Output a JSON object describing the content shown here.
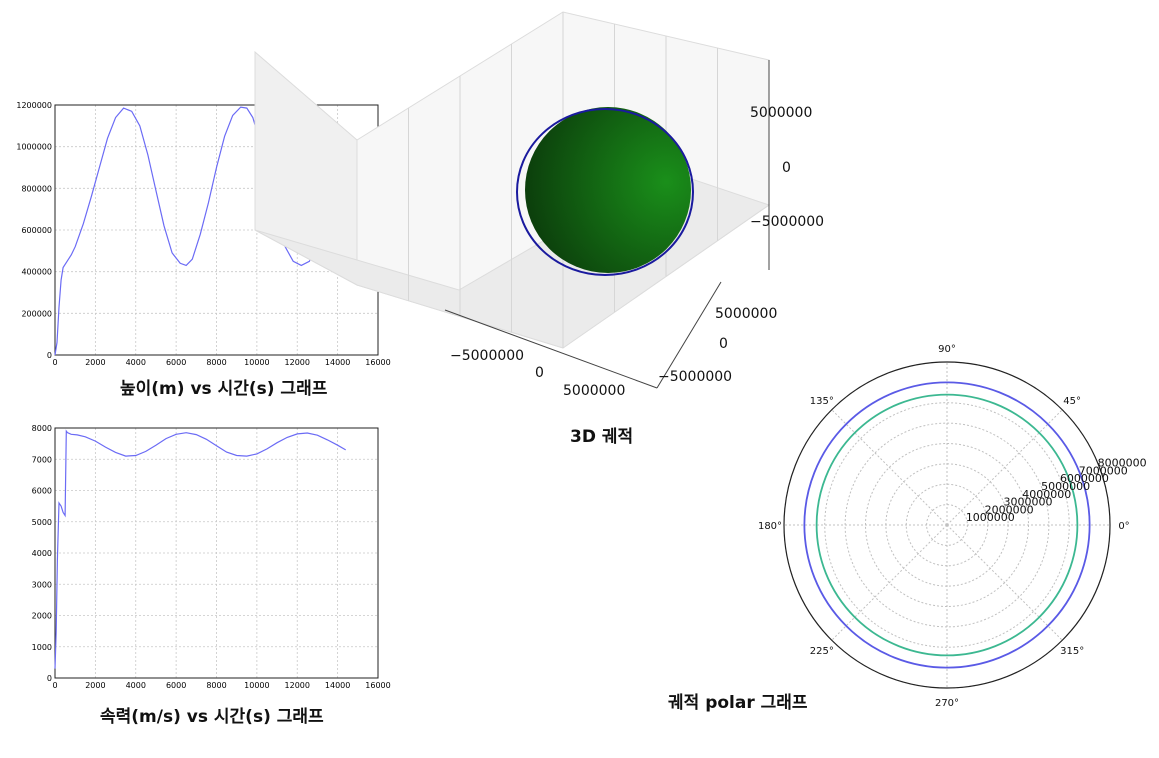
{
  "chart_data": [
    {
      "type": "line",
      "title": "높이(m) vs 시간(s) 그래프",
      "xlim": [
        0,
        16000
      ],
      "ylim": [
        0,
        1200000
      ],
      "x_ticks": [
        "0",
        "2000",
        "4000",
        "6000",
        "8000",
        "10000",
        "12000",
        "14000",
        "16000"
      ],
      "y_ticks": [
        "0",
        "200000",
        "400000",
        "600000",
        "800000",
        "1000000",
        "1200000"
      ],
      "grid": true,
      "color": "#6b6bf5",
      "series": [
        {
          "x": [
            0,
            100,
            200,
            300,
            400,
            600,
            800,
            1000,
            1400,
            1800,
            2200,
            2600,
            3000,
            3400,
            3800,
            4200,
            4600,
            5000,
            5400,
            5800,
            6200,
            6500,
            6800,
            7200,
            7600,
            8000,
            8400,
            8800,
            9200,
            9500,
            9800,
            10200,
            10600,
            11000,
            11400,
            11800,
            12200,
            12600,
            12900,
            13200,
            13600,
            14000,
            14400
          ],
          "y": [
            0,
            60000,
            230000,
            360000,
            420000,
            450000,
            480000,
            520000,
            630000,
            760000,
            900000,
            1040000,
            1140000,
            1185000,
            1170000,
            1100000,
            960000,
            790000,
            620000,
            490000,
            440000,
            430000,
            460000,
            580000,
            730000,
            900000,
            1050000,
            1150000,
            1190000,
            1185000,
            1140000,
            1010000,
            840000,
            660000,
            520000,
            450000,
            430000,
            450000,
            520000,
            620000,
            750000,
            880000,
            950000
          ]
        }
      ]
    },
    {
      "type": "line",
      "title": "속력(m/s) vs 시간(s) 그래프",
      "xlim": [
        0,
        16000
      ],
      "ylim": [
        0,
        8000
      ],
      "x_ticks": [
        "0",
        "2000",
        "4000",
        "6000",
        "8000",
        "10000",
        "12000",
        "14000",
        "16000"
      ],
      "y_ticks": [
        "0",
        "1000",
        "2000",
        "3000",
        "4000",
        "5000",
        "6000",
        "7000",
        "8000"
      ],
      "grid": true,
      "color": "#6b6bf5",
      "series": [
        {
          "x": [
            0,
            60,
            120,
            200,
            300,
            400,
            500,
            560,
            620,
            800,
            1100,
            1500,
            2000,
            2500,
            3000,
            3500,
            4000,
            4500,
            5000,
            5500,
            6000,
            6500,
            7000,
            7500,
            8000,
            8500,
            9000,
            9500,
            10000,
            10500,
            11000,
            11500,
            12000,
            12500,
            13000,
            13500,
            14000,
            14400
          ],
          "y": [
            300,
            1500,
            3800,
            5600,
            5500,
            5300,
            5200,
            7900,
            7850,
            7800,
            7780,
            7720,
            7580,
            7390,
            7220,
            7100,
            7120,
            7250,
            7450,
            7660,
            7800,
            7850,
            7790,
            7640,
            7430,
            7230,
            7120,
            7100,
            7170,
            7330,
            7530,
            7700,
            7810,
            7840,
            7770,
            7620,
            7450,
            7300
          ]
        }
      ]
    },
    {
      "type": "3d-scatter",
      "title": "3D 궤적",
      "z_ticks": [
        "5000000",
        "0",
        "−5000000"
      ],
      "x_ticks": [
        "−5000000",
        "0",
        "5000000"
      ],
      "y_ticks": [
        "5000000",
        "0",
        "−5000000"
      ],
      "surface_color": "#1a8f1a",
      "orbit_color": "#1a1a9e"
    },
    {
      "type": "polar",
      "title": "궤적 polar 그래프",
      "angle_ticks": [
        "0°",
        "45°",
        "90°",
        "135°",
        "180°",
        "225°",
        "270°",
        "315°"
      ],
      "r_ticks": [
        "1000000",
        "2000000",
        "3000000",
        "4000000",
        "5000000",
        "6000000",
        "7000000",
        "8000000"
      ],
      "rlim": [
        0,
        8000000
      ],
      "series": [
        {
          "color": "#5a5ae6",
          "r": 7000000
        },
        {
          "color": "#3cb891",
          "r": 6400000
        }
      ]
    }
  ]
}
